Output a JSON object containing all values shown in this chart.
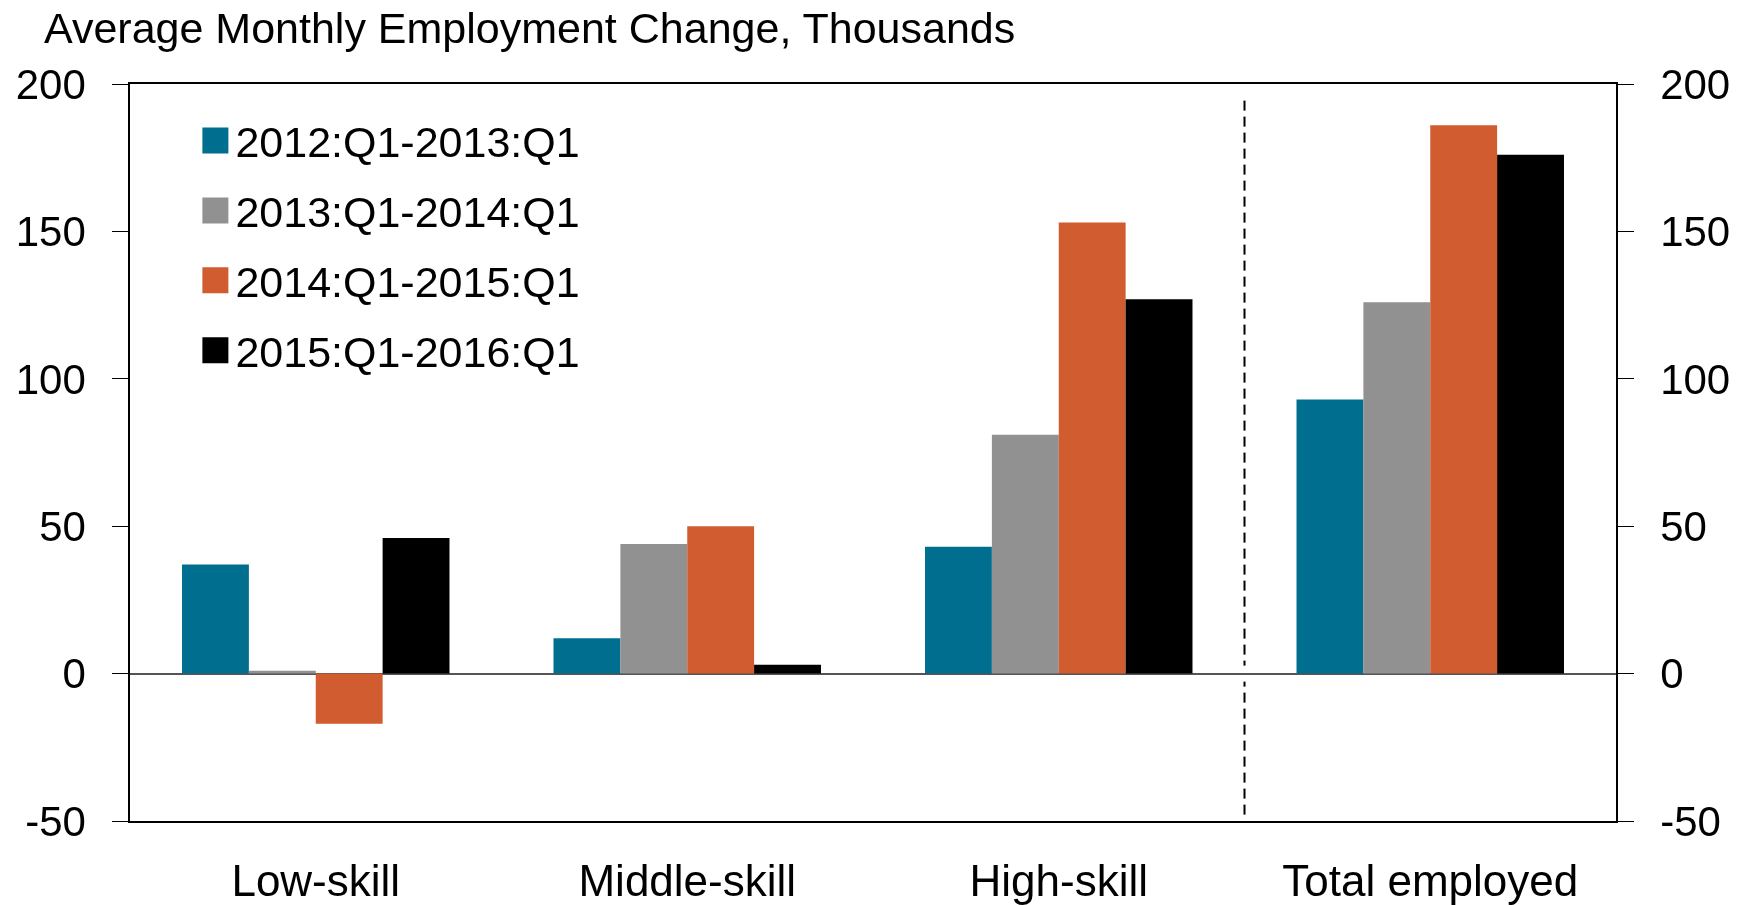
{
  "chart_data": {
    "type": "bar",
    "title": "Average Monthly Employment Change, Thousands",
    "categories": [
      "Low-skill",
      "Middle-skill",
      "High-skill",
      "Total employed"
    ],
    "series": [
      {
        "name": "2012:Q1-2013:Q1",
        "color": "#006f8f",
        "values": [
          37,
          12,
          43,
          93
        ]
      },
      {
        "name": "2013:Q1-2014:Q1",
        "color": "#919191",
        "values": [
          1,
          44,
          81,
          126
        ]
      },
      {
        "name": "2014:Q1-2015:Q1",
        "color": "#d05c2f",
        "values": [
          -17,
          50,
          153,
          186
        ]
      },
      {
        "name": "2015:Q1-2016:Q1",
        "color": "#000000",
        "values": [
          46,
          3,
          127,
          176
        ]
      }
    ],
    "ylim": [
      -50,
      200
    ],
    "yticks": [
      -50,
      0,
      50,
      100,
      150,
      200
    ],
    "y2lim": [
      -50,
      200
    ],
    "y2ticks": [
      -50,
      0,
      50,
      100,
      150,
      200
    ],
    "legend": "top left"
  }
}
